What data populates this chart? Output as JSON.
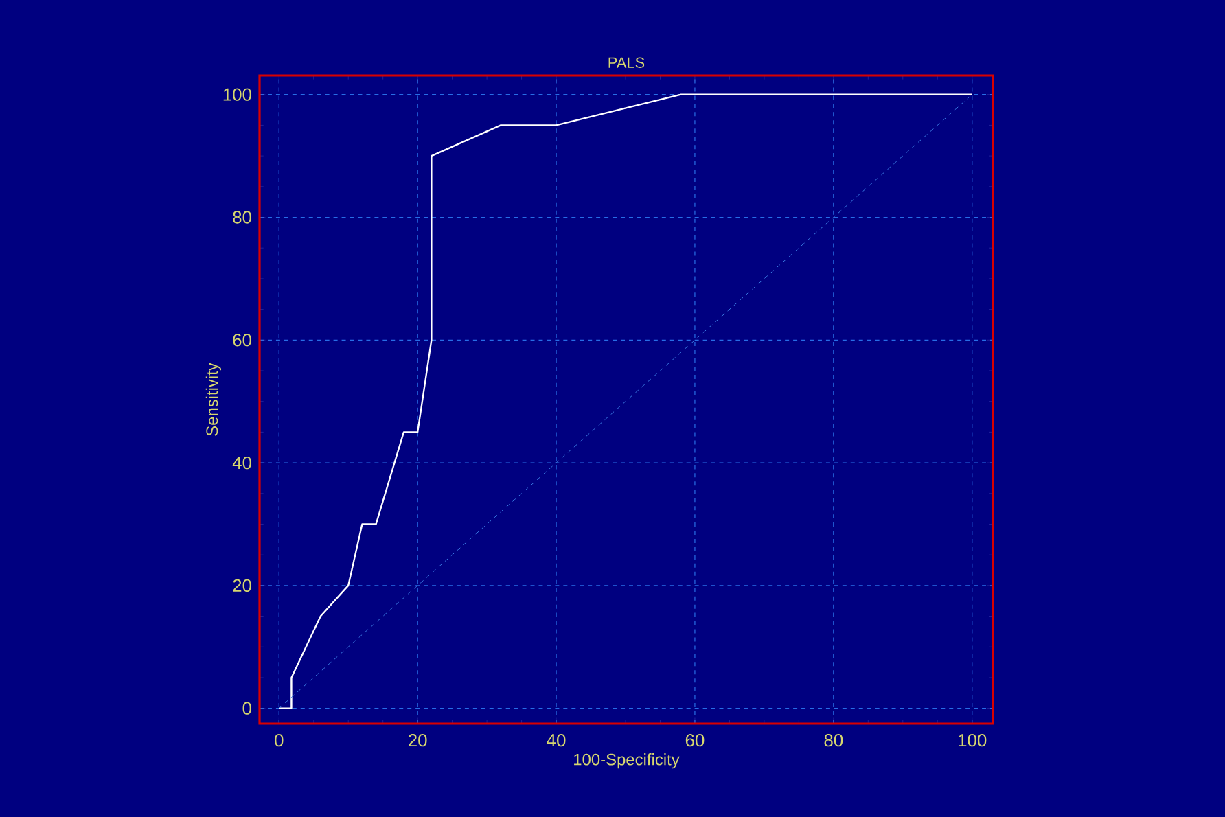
{
  "chart_data": {
    "type": "line",
    "title": "PALS",
    "xlabel": "100-Specificity",
    "ylabel": "Sensitivity",
    "xlim": [
      -2.8,
      103
    ],
    "ylim": [
      -2.5,
      103.1
    ],
    "xticks": [
      0,
      20,
      40,
      60,
      80,
      100
    ],
    "yticks": [
      0,
      20,
      40,
      60,
      80,
      100
    ],
    "grid": true,
    "marker": "none",
    "series": [
      {
        "color": "#ffffff",
        "line_style": "solid",
        "x": [
          0,
          1.8,
          1.8,
          6,
          10,
          12,
          14,
          18,
          20,
          22,
          22,
          32,
          40,
          58,
          100
        ],
        "values": [
          0,
          0,
          5,
          15,
          20,
          30,
          30,
          45,
          45,
          60,
          90,
          95,
          95,
          100,
          100
        ]
      },
      {
        "color": "#3a78e0",
        "line_style": "dashed",
        "x": [
          0,
          100
        ],
        "values": [
          0,
          100
        ]
      }
    ]
  }
}
